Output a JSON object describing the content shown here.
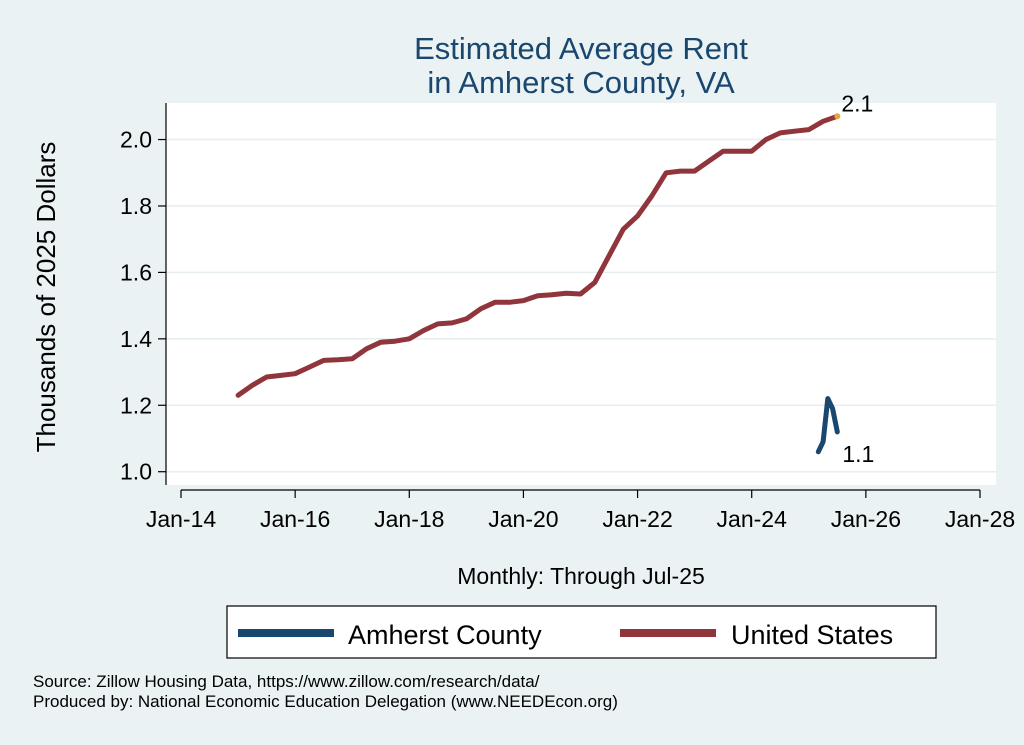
{
  "footer": {
    "source": "Source: Zillow Housing Data, https://www.zillow.com/research/data/",
    "produced_by": "Produced by: National Economic Education Delegation (www.NEEDEcon.org)"
  },
  "chart_data": {
    "type": "line",
    "title": [
      "Estimated Average Rent",
      "in Amherst County, VA"
    ],
    "xlabel": "Monthly: Through Jul-25",
    "ylabel": "Thousands of 2025 Dollars",
    "x_ticks": [
      "Jan-14",
      "Jan-16",
      "Jan-18",
      "Jan-20",
      "Jan-22",
      "Jan-24",
      "Jan-26",
      "Jan-28"
    ],
    "y_ticks": [
      "1.0",
      "1.2",
      "1.4",
      "1.6",
      "1.8",
      "2.0"
    ],
    "xlim": [
      "2014-01",
      "2028-01"
    ],
    "ylim": [
      0.96,
      2.11
    ],
    "grid": "horizontal",
    "legend_position": "bottom",
    "colors": {
      "background": "#eaf2f3",
      "plot_background": "#ffffff",
      "amherst": "#1a476f",
      "us": "#90353b",
      "endpoint": "#e8a33a",
      "title": "#1a476f",
      "grid": "#e6eef0"
    },
    "series": [
      {
        "name": "Amherst County",
        "color": "#1a476f",
        "end_label": "1.1",
        "points": [
          [
            "2025-03",
            1.06
          ],
          [
            "2025-04",
            1.09
          ],
          [
            "2025-05",
            1.22
          ],
          [
            "2025-06",
            1.19
          ],
          [
            "2025-07",
            1.12
          ]
        ]
      },
      {
        "name": "United States",
        "color": "#90353b",
        "end_label": "2.1",
        "points": [
          [
            "2015-01",
            1.23
          ],
          [
            "2015-04",
            1.26
          ],
          [
            "2015-07",
            1.285
          ],
          [
            "2015-10",
            1.29
          ],
          [
            "2016-01",
            1.295
          ],
          [
            "2016-04",
            1.315
          ],
          [
            "2016-07",
            1.335
          ],
          [
            "2016-10",
            1.337
          ],
          [
            "2017-01",
            1.34
          ],
          [
            "2017-04",
            1.37
          ],
          [
            "2017-07",
            1.39
          ],
          [
            "2017-10",
            1.393
          ],
          [
            "2018-01",
            1.4
          ],
          [
            "2018-04",
            1.425
          ],
          [
            "2018-07",
            1.445
          ],
          [
            "2018-10",
            1.448
          ],
          [
            "2019-01",
            1.46
          ],
          [
            "2019-04",
            1.49
          ],
          [
            "2019-07",
            1.51
          ],
          [
            "2019-10",
            1.51
          ],
          [
            "2020-01",
            1.515
          ],
          [
            "2020-04",
            1.53
          ],
          [
            "2020-07",
            1.533
          ],
          [
            "2020-10",
            1.537
          ],
          [
            "2021-01",
            1.535
          ],
          [
            "2021-04",
            1.57
          ],
          [
            "2021-07",
            1.65
          ],
          [
            "2021-10",
            1.73
          ],
          [
            "2022-01",
            1.77
          ],
          [
            "2022-04",
            1.83
          ],
          [
            "2022-07",
            1.9
          ],
          [
            "2022-10",
            1.905
          ],
          [
            "2023-01",
            1.905
          ],
          [
            "2023-04",
            1.935
          ],
          [
            "2023-07",
            1.965
          ],
          [
            "2023-10",
            1.965
          ],
          [
            "2024-01",
            1.965
          ],
          [
            "2024-04",
            2.0
          ],
          [
            "2024-07",
            2.02
          ],
          [
            "2024-10",
            2.025
          ],
          [
            "2025-01",
            2.03
          ],
          [
            "2025-04",
            2.055
          ],
          [
            "2025-07",
            2.07
          ]
        ]
      }
    ]
  }
}
